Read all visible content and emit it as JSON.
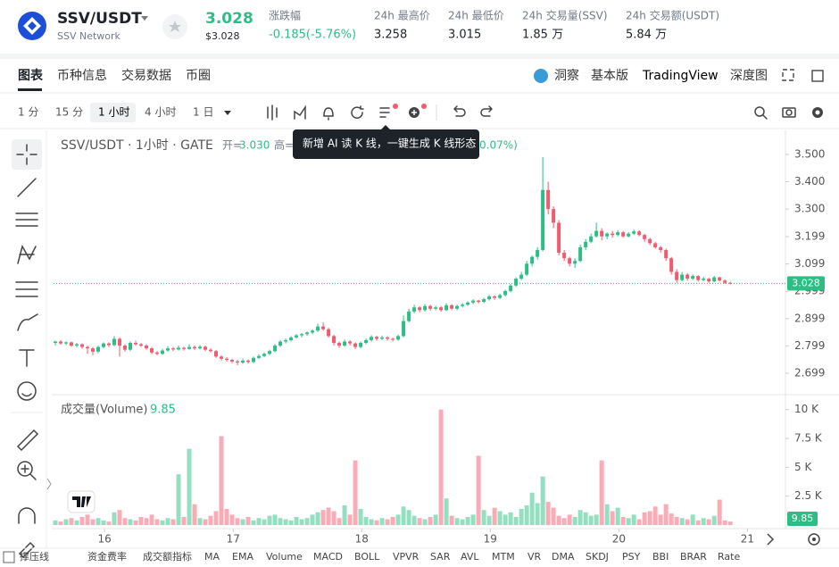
{
  "header": {
    "symbol": "SSV/USDT",
    "name": "SSV Network",
    "price": "3.028",
    "price_usd": "$3.028",
    "change_label": "涨跌幅",
    "change": "-0.185(-5.76%)",
    "stats": [
      {
        "label": "24h 最高价",
        "value": "3.258"
      },
      {
        "label": "24h 最低价",
        "value": "3.015"
      },
      {
        "label": "24h 交易量(SSV)",
        "value": "1.85 万"
      },
      {
        "label": "24h 交易额(USDT)",
        "value": "5.84 万"
      }
    ]
  },
  "tabs": [
    "图表",
    "币种信息",
    "交易数据",
    "币圈"
  ],
  "right_tabs": [
    "洞察",
    "基本版",
    "TradingView",
    "深度图"
  ],
  "intervals": [
    "1 分",
    "15 分",
    "1 小时",
    "4 小时",
    "1 日"
  ],
  "tooltip": "新增 AI 读 K 线，一键生成 K 线形态",
  "indicators": [
    "撑压线",
    "资金费率",
    "成交额指标",
    "MA",
    "EMA",
    "Volume",
    "MACD",
    "BOLL",
    "VPVR",
    "SAR",
    "AVL",
    "MTM",
    "VR",
    "DMA",
    "SKDJ",
    "PSY",
    "BBI",
    "BRAR",
    "Rate"
  ],
  "chart_data": {
    "type": "candlestick",
    "legend": {
      "title": "SSV/USDT · 1小时 · GATE",
      "open_label": "开=",
      "open_value": "3.030",
      "high_label": "高=",
      "tail": "0.07%)"
    },
    "up_color": "#2ebd85",
    "down_color": "#ef5b6f",
    "grid": false,
    "xlim": [
      -0.33,
      136.3
    ],
    "xticks": [
      {
        "value": 9.2,
        "label": "16"
      },
      {
        "value": 33.2,
        "label": "17"
      },
      {
        "value": 57.2,
        "label": "18"
      },
      {
        "value": 81.2,
        "label": "19"
      },
      {
        "value": 105.2,
        "label": "20"
      },
      {
        "value": 129.2,
        "label": "21"
      }
    ],
    "ylim": [
      2.627,
      3.575
    ],
    "yticks": [
      {
        "value": 3.5,
        "label": "3.500"
      },
      {
        "value": 3.4,
        "label": "3.400"
      },
      {
        "value": 3.3,
        "label": "3.300"
      },
      3.199,
      3.099,
      2.999,
      2.899,
      2.799,
      2.699
    ],
    "last_price": 3.028,
    "candles": [
      [
        2.81,
        2.818,
        2.8,
        2.815
      ],
      [
        2.815,
        2.82,
        2.803,
        2.808
      ],
      [
        2.808,
        2.816,
        2.802,
        2.812
      ],
      [
        2.812,
        2.815,
        2.795,
        2.8
      ],
      [
        2.8,
        2.81,
        2.794,
        2.805
      ],
      [
        2.805,
        2.808,
        2.788,
        2.795
      ],
      [
        2.795,
        2.8,
        2.77,
        2.79
      ],
      [
        2.79,
        2.795,
        2.765,
        2.778
      ],
      [
        2.778,
        2.8,
        2.772,
        2.795
      ],
      [
        2.795,
        2.812,
        2.79,
        2.808
      ],
      [
        2.808,
        2.812,
        2.795,
        2.802
      ],
      [
        2.802,
        2.835,
        2.798,
        2.825
      ],
      [
        2.825,
        2.83,
        2.76,
        2.8
      ],
      [
        2.8,
        2.805,
        2.778,
        2.785
      ],
      [
        2.785,
        2.815,
        2.78,
        2.81
      ],
      [
        2.81,
        2.818,
        2.8,
        2.805
      ],
      [
        2.805,
        2.81,
        2.795,
        2.8
      ],
      [
        2.8,
        2.805,
        2.785,
        2.79
      ],
      [
        2.79,
        2.795,
        2.768,
        2.775
      ],
      [
        2.775,
        2.78,
        2.764,
        2.77
      ],
      [
        2.77,
        2.788,
        2.766,
        2.782
      ],
      [
        2.782,
        2.798,
        2.778,
        2.79
      ],
      [
        2.79,
        2.795,
        2.78,
        2.786
      ],
      [
        2.786,
        2.8,
        2.782,
        2.792
      ],
      [
        2.792,
        2.796,
        2.782,
        2.788
      ],
      [
        2.788,
        2.805,
        2.785,
        2.795
      ],
      [
        2.795,
        2.8,
        2.784,
        2.79
      ],
      [
        2.79,
        2.802,
        2.786,
        2.796
      ],
      [
        2.796,
        2.8,
        2.78,
        2.785
      ],
      [
        2.785,
        2.79,
        2.775,
        2.78
      ],
      [
        2.78,
        2.784,
        2.755,
        2.76
      ],
      [
        2.76,
        2.765,
        2.745,
        2.752
      ],
      [
        2.752,
        2.758,
        2.742,
        2.748
      ],
      [
        2.748,
        2.752,
        2.735,
        2.742
      ],
      [
        2.742,
        2.748,
        2.728,
        2.738
      ],
      [
        2.738,
        2.752,
        2.734,
        2.745
      ],
      [
        2.745,
        2.75,
        2.735,
        2.74
      ],
      [
        2.74,
        2.76,
        2.736,
        2.755
      ],
      [
        2.755,
        2.768,
        2.75,
        2.762
      ],
      [
        2.762,
        2.775,
        2.758,
        2.77
      ],
      [
        2.77,
        2.785,
        2.765,
        2.78
      ],
      [
        2.78,
        2.805,
        2.776,
        2.8
      ],
      [
        2.8,
        2.82,
        2.795,
        2.815
      ],
      [
        2.815,
        2.826,
        2.808,
        2.82
      ],
      [
        2.82,
        2.835,
        2.815,
        2.83
      ],
      [
        2.83,
        2.842,
        2.825,
        2.838
      ],
      [
        2.838,
        2.846,
        2.83,
        2.842
      ],
      [
        2.842,
        2.852,
        2.836,
        2.848
      ],
      [
        2.848,
        2.86,
        2.842,
        2.855
      ],
      [
        2.855,
        2.88,
        2.85,
        2.87
      ],
      [
        2.87,
        2.885,
        2.855,
        2.86
      ],
      [
        2.86,
        2.865,
        2.83,
        2.835
      ],
      [
        2.835,
        2.84,
        2.8,
        2.81
      ],
      [
        2.81,
        2.815,
        2.792,
        2.8
      ],
      [
        2.8,
        2.822,
        2.796,
        2.815
      ],
      [
        2.815,
        2.82,
        2.8,
        2.808
      ],
      [
        2.808,
        2.812,
        2.788,
        2.795
      ],
      [
        2.795,
        2.815,
        2.79,
        2.81
      ],
      [
        2.81,
        2.826,
        2.805,
        2.82
      ],
      [
        2.82,
        2.838,
        2.815,
        2.832
      ],
      [
        2.832,
        2.836,
        2.818,
        2.825
      ],
      [
        2.825,
        2.836,
        2.82,
        2.83
      ],
      [
        2.83,
        2.834,
        2.818,
        2.825
      ],
      [
        2.825,
        2.83,
        2.815,
        2.822
      ],
      [
        2.822,
        2.84,
        2.818,
        2.835
      ],
      [
        2.835,
        2.91,
        2.83,
        2.89
      ],
      [
        2.89,
        2.935,
        2.885,
        2.925
      ],
      [
        2.925,
        2.95,
        2.918,
        2.94
      ],
      [
        2.94,
        2.945,
        2.922,
        2.93
      ],
      [
        2.93,
        2.952,
        2.925,
        2.945
      ],
      [
        2.945,
        2.95,
        2.928,
        2.935
      ],
      [
        2.935,
        2.946,
        2.93,
        2.94
      ],
      [
        2.94,
        2.945,
        2.924,
        2.93
      ],
      [
        2.93,
        2.955,
        2.926,
        2.948
      ],
      [
        2.948,
        2.952,
        2.93,
        2.935
      ],
      [
        2.935,
        2.95,
        2.93,
        2.945
      ],
      [
        2.945,
        2.956,
        2.94,
        2.95
      ],
      [
        2.95,
        2.962,
        2.945,
        2.958
      ],
      [
        2.958,
        2.97,
        2.952,
        2.965
      ],
      [
        2.965,
        2.968,
        2.955,
        2.96
      ],
      [
        2.96,
        2.975,
        2.956,
        2.97
      ],
      [
        2.97,
        2.986,
        2.965,
        2.98
      ],
      [
        2.98,
        2.984,
        2.968,
        2.975
      ],
      [
        2.975,
        2.99,
        2.97,
        2.985
      ],
      [
        2.985,
        3.005,
        2.98,
        3.0
      ],
      [
        3.0,
        3.025,
        2.995,
        3.02
      ],
      [
        3.02,
        3.05,
        3.015,
        3.045
      ],
      [
        3.045,
        3.07,
        3.04,
        3.06
      ],
      [
        3.06,
        3.11,
        3.055,
        3.1
      ],
      [
        3.1,
        3.13,
        3.09,
        3.125
      ],
      [
        3.125,
        3.16,
        3.115,
        3.15
      ],
      [
        3.15,
        3.49,
        3.145,
        3.37
      ],
      [
        3.37,
        3.4,
        3.28,
        3.3
      ],
      [
        3.3,
        3.31,
        3.23,
        3.25
      ],
      [
        3.25,
        3.26,
        3.13,
        3.14
      ],
      [
        3.14,
        3.15,
        3.11,
        3.12
      ],
      [
        3.12,
        3.125,
        3.09,
        3.1
      ],
      [
        3.1,
        3.12,
        3.085,
        3.11
      ],
      [
        3.11,
        3.17,
        3.105,
        3.16
      ],
      [
        3.16,
        3.19,
        3.15,
        3.18
      ],
      [
        3.18,
        3.21,
        3.175,
        3.2
      ],
      [
        3.2,
        3.25,
        3.195,
        3.22
      ],
      [
        3.22,
        3.23,
        3.185,
        3.2
      ],
      [
        3.2,
        3.215,
        3.19,
        3.21
      ],
      [
        3.21,
        3.22,
        3.195,
        3.205
      ],
      [
        3.205,
        3.222,
        3.2,
        3.215
      ],
      [
        3.215,
        3.22,
        3.195,
        3.2
      ],
      [
        3.2,
        3.215,
        3.196,
        3.21
      ],
      [
        3.21,
        3.225,
        3.205,
        3.218
      ],
      [
        3.218,
        3.222,
        3.2,
        3.205
      ],
      [
        3.205,
        3.21,
        3.18,
        3.19
      ],
      [
        3.19,
        3.195,
        3.168,
        3.175
      ],
      [
        3.175,
        3.18,
        3.155,
        3.16
      ],
      [
        3.16,
        3.165,
        3.14,
        3.15
      ],
      [
        3.15,
        3.155,
        3.11,
        3.12
      ],
      [
        3.12,
        3.125,
        3.06,
        3.07
      ],
      [
        3.07,
        3.08,
        3.03,
        3.04
      ],
      [
        3.04,
        3.07,
        3.035,
        3.06
      ],
      [
        3.06,
        3.065,
        3.038,
        3.045
      ],
      [
        3.045,
        3.06,
        3.04,
        3.055
      ],
      [
        3.055,
        3.058,
        3.034,
        3.04
      ],
      [
        3.04,
        3.052,
        3.036,
        3.045
      ],
      [
        3.045,
        3.048,
        3.03,
        3.035
      ],
      [
        3.035,
        3.055,
        3.032,
        3.05
      ],
      [
        3.05,
        3.052,
        3.034,
        3.038
      ],
      [
        3.038,
        3.042,
        3.026,
        3.03
      ],
      [
        3.03,
        3.034,
        3.024,
        3.028
      ]
    ],
    "volume_title": "成交量(Volume)",
    "volume_value": "9.85",
    "volume_ylim": [
      0,
      11060
    ],
    "volume_yticks": [
      {
        "value": 10000,
        "label": "10 K"
      },
      {
        "value": 7500,
        "label": "7.5 K"
      },
      {
        "value": 5000,
        "label": "5 K"
      },
      {
        "value": 2500,
        "label": "2.5 K"
      }
    ],
    "volumes": [
      400,
      300,
      500,
      600,
      400,
      700,
      900,
      500,
      600,
      400,
      300,
      1100,
      1300,
      600,
      500,
      400,
      700,
      600,
      900,
      500,
      400,
      600,
      500,
      4400,
      700,
      6600,
      1800,
      600,
      500,
      800,
      1200,
      7700,
      1400,
      900,
      600,
      500,
      700,
      400,
      600,
      500,
      800,
      900,
      600,
      500,
      400,
      700,
      500,
      600,
      900,
      1100,
      1300,
      1500,
      1200,
      600,
      1700,
      900,
      5600,
      1400,
      700,
      500,
      400,
      600,
      500,
      700,
      900,
      1600,
      1300,
      800,
      600,
      500,
      700,
      900,
      10000,
      2300,
      800,
      600,
      500,
      700,
      900,
      6000,
      1300,
      800,
      1500,
      1200,
      900,
      1100,
      700,
      1400,
      1700,
      2800,
      1900,
      4200,
      2000,
      1500,
      800,
      600,
      900,
      700,
      1300,
      1100,
      800,
      900,
      5600,
      1800,
      1200,
      1500,
      700,
      600,
      900,
      500,
      1100,
      1200,
      1600,
      900,
      1800,
      1000,
      700,
      600,
      500,
      900,
      400,
      600,
      500,
      800,
      2200,
      400,
      300
    ]
  }
}
